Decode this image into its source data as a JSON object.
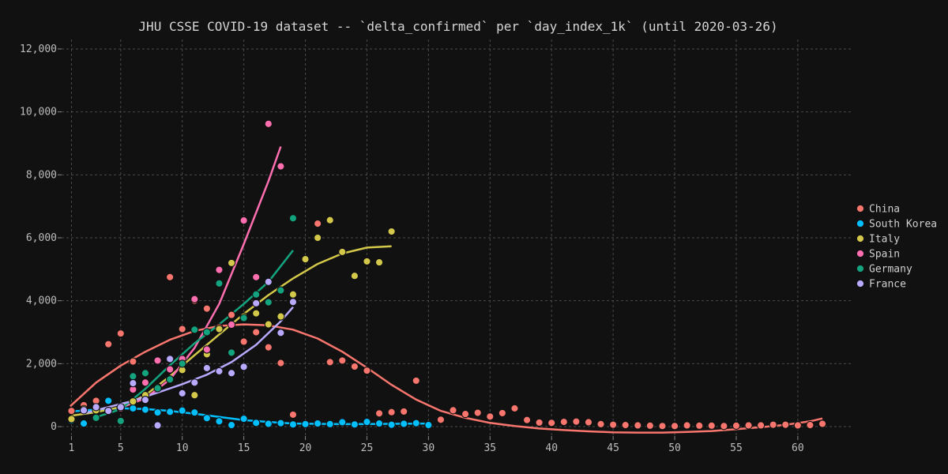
{
  "chart_data": {
    "type": "scatter",
    "title": "JHU CSSE COVID-19 dataset -- `delta_confirmed` per `day_index_1k` (until 2020-03-26)",
    "xlabel": "",
    "ylabel": "",
    "xlim": [
      0.2,
      64.5
    ],
    "ylim": [
      -300,
      12300
    ],
    "x_ticks": [
      1,
      5,
      10,
      15,
      20,
      25,
      30,
      35,
      40,
      45,
      50,
      55,
      60
    ],
    "y_ticks": [
      0,
      2000,
      4000,
      6000,
      8000,
      10000,
      12000
    ],
    "y_tick_labels": [
      "0",
      "2,000",
      "4,000",
      "6,000",
      "8,000",
      "10,000",
      "12,000"
    ],
    "x_tick_labels": [
      "1",
      "5",
      "10",
      "15",
      "20",
      "25",
      "30",
      "35",
      "40",
      "45",
      "50",
      "55",
      "60"
    ],
    "grid": true,
    "legend_position": "right",
    "series": [
      {
        "name": "China",
        "color": "#f8766d",
        "x": [
          1,
          2,
          3,
          4,
          5,
          6,
          7,
          8,
          9,
          10,
          11,
          12,
          13,
          14,
          15,
          16,
          17,
          18,
          19,
          20,
          21,
          22,
          23,
          24,
          25,
          26,
          27,
          28,
          29,
          30,
          31,
          32,
          33,
          34,
          35,
          36,
          37,
          38,
          39,
          40,
          41,
          42,
          43,
          44,
          45,
          46,
          47,
          48,
          49,
          50,
          51,
          52,
          53,
          54,
          55,
          56,
          57,
          58,
          59,
          60,
          61,
          62
        ],
        "y": [
          500,
          680,
          820,
          2620,
          2960,
          2070,
          1700,
          2100,
          4750,
          3100,
          4000,
          3750,
          3150,
          3550,
          2700,
          3000,
          2520,
          2020,
          380,
          null,
          6450,
          2050,
          2100,
          1910,
          1780,
          420,
          460,
          480,
          1460,
          50,
          220,
          520,
          400,
          440,
          320,
          430,
          580,
          210,
          130,
          120,
          150,
          160,
          140,
          80,
          60,
          50,
          40,
          30,
          20,
          20,
          40,
          30,
          30,
          20,
          30,
          40,
          40,
          60,
          60,
          40,
          50,
          90
        ],
        "trend_x": [
          0.9,
          3,
          5,
          7,
          9,
          11,
          13,
          15,
          17,
          19,
          21,
          23,
          25,
          27,
          29,
          31,
          33,
          35,
          37,
          39,
          41,
          43,
          45,
          47,
          49,
          51,
          53,
          55,
          57,
          59,
          61,
          62
        ],
        "trend_y": [
          650,
          1400,
          1940,
          2380,
          2760,
          3040,
          3200,
          3250,
          3220,
          3080,
          2800,
          2380,
          1870,
          1330,
          860,
          500,
          280,
          120,
          20,
          -60,
          -110,
          -150,
          -180,
          -190,
          -190,
          -170,
          -140,
          -80,
          -20,
          60,
          170,
          260
        ]
      },
      {
        "name": "South Korea",
        "color": "#00bfff",
        "x": [
          1,
          2,
          3,
          4,
          5,
          6,
          7,
          8,
          9,
          10,
          11,
          12,
          13,
          14,
          15,
          16,
          17,
          18,
          19,
          20,
          21,
          22,
          23,
          24,
          25,
          26,
          27,
          28,
          29,
          30
        ],
        "y": [
          200,
          100,
          580,
          820,
          600,
          580,
          540,
          450,
          470,
          510,
          450,
          270,
          170,
          50,
          250,
          120,
          90,
          110,
          70,
          80,
          100,
          80,
          140,
          70,
          150,
          100,
          60,
          90,
          110,
          50
        ],
        "trend_x": [
          1,
          3,
          5,
          7,
          9,
          11,
          13,
          15,
          17,
          19,
          21,
          23,
          25,
          27,
          29,
          30
        ],
        "trend_y": [
          480,
          540,
          580,
          560,
          500,
          410,
          310,
          210,
          150,
          100,
          90,
          80,
          85,
          90,
          95,
          100
        ]
      },
      {
        "name": "Italy",
        "color": "#d4c84a",
        "x": [
          1,
          2,
          3,
          4,
          5,
          6,
          7,
          8,
          9,
          10,
          11,
          12,
          13,
          14,
          15,
          16,
          17,
          18,
          19,
          20,
          21,
          22,
          23,
          24,
          25,
          26,
          27
        ],
        "y": [
          240,
          560,
          520,
          500,
          600,
          800,
          1000,
          1250,
          1500,
          1800,
          1000,
          2300,
          3100,
          5200,
          3500,
          3600,
          3250,
          3500,
          4200,
          5320,
          6000,
          6560,
          5550,
          4790,
          5250,
          5220,
          6200
        ],
        "trend_x": [
          1,
          3,
          5,
          7,
          9,
          11,
          13,
          15,
          17,
          19,
          21,
          23,
          25,
          27
        ],
        "trend_y": [
          350,
          460,
          620,
          1000,
          1600,
          2270,
          2930,
          3580,
          4180,
          4710,
          5170,
          5500,
          5690,
          5730
        ]
      },
      {
        "name": "Spain",
        "color": "#ff6fb0",
        "x": [
          5,
          6,
          7,
          8,
          9,
          10,
          11,
          12,
          13,
          14,
          15,
          16,
          17,
          18
        ],
        "y": [
          580,
          1180,
          1400,
          2100,
          1820,
          2150,
          4050,
          2450,
          4980,
          3240,
          6550,
          4750,
          9620,
          8270
        ],
        "trend_x": [
          5,
          7,
          9,
          11,
          13,
          15,
          17,
          18
        ],
        "trend_y": [
          600,
          900,
          1500,
          2500,
          3900,
          5800,
          7800,
          8900
        ]
      },
      {
        "name": "Germany",
        "color": "#14a37f",
        "x": [
          3,
          5,
          6,
          7,
          8,
          9,
          10,
          11,
          12,
          13,
          14,
          15,
          16,
          17,
          18,
          19
        ],
        "y": [
          280,
          180,
          1600,
          1700,
          1220,
          1500,
          2000,
          3080,
          3000,
          4550,
          2350,
          3450,
          4200,
          3950,
          4330,
          6620
        ],
        "trend_x": [
          3,
          5,
          7,
          9,
          11,
          13,
          15,
          17,
          19
        ],
        "trend_y": [
          300,
          550,
          1200,
          1950,
          2650,
          3250,
          3900,
          4600,
          5600
        ]
      },
      {
        "name": "France",
        "color": "#b9a9ff",
        "x": [
          2,
          3,
          4,
          5,
          6,
          7,
          8,
          9,
          10,
          11,
          12,
          13,
          14,
          15,
          16,
          17,
          18,
          19
        ],
        "y": [
          520,
          620,
          500,
          620,
          1380,
          850,
          40,
          2150,
          1060,
          1400,
          1860,
          1760,
          1700,
          1900,
          3920,
          4600,
          2980,
          3960
        ],
        "trend_x": [
          2,
          4,
          6,
          8,
          10,
          12,
          14,
          16,
          18,
          19
        ],
        "trend_y": [
          420,
          620,
          820,
          1080,
          1350,
          1650,
          2050,
          2600,
          3350,
          3800
        ]
      }
    ]
  }
}
